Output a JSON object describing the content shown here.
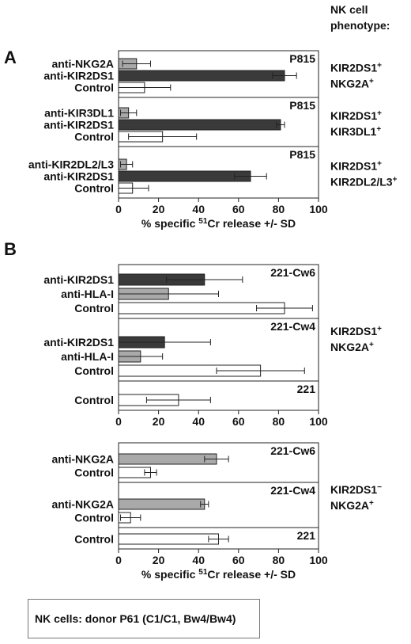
{
  "header": {
    "line1": "NK cell",
    "line2": "phenotype:"
  },
  "footer": {
    "text": "NK cells: donor P61 (C1/C1, Bw4/Bw4)"
  },
  "colors": {
    "dark": "#3a3a3a",
    "gray": "#a9a9a9",
    "open": "#ffffff"
  },
  "chart_data": [
    {
      "type": "bar",
      "orientation": "horizontal",
      "letter": "A",
      "xlim": [
        0,
        100
      ],
      "xticks": [
        "0",
        "20",
        "40",
        "60",
        "80",
        "100"
      ],
      "xlabel": {
        "pre": "% specific ",
        "sup": "51",
        "post": "Cr release +/- SD"
      },
      "panels": [
        {
          "target": "P815",
          "phenotype": [
            {
              "base": "KIR2DS1",
              "sup": "+"
            },
            {
              "base": "NKG2A",
              "sup": "+"
            }
          ],
          "bars": [
            {
              "label": "anti-NKG2A",
              "value": 9,
              "sd": 7,
              "fill": "gray"
            },
            {
              "label": "anti-KIR2DS1",
              "value": 83,
              "sd": 6,
              "fill": "dark"
            },
            {
              "label": "Control",
              "value": 13,
              "sd": 13,
              "fill": "open"
            }
          ]
        },
        {
          "target": "P815",
          "phenotype": [
            {
              "base": "KIR2DS1",
              "sup": "+"
            },
            {
              "base": "KIR3DL1",
              "sup": "+"
            }
          ],
          "bars": [
            {
              "label": "anti-KIR3DL1",
              "value": 5,
              "sd": 4,
              "fill": "gray"
            },
            {
              "label": "anti-KIR2DS1",
              "value": 81,
              "sd": 2,
              "fill": "dark"
            },
            {
              "label": "Control",
              "value": 22,
              "sd": 17,
              "fill": "open"
            }
          ]
        },
        {
          "target": "P815",
          "phenotype": [
            {
              "base": "KIR2DS1",
              "sup": "+"
            },
            {
              "base": "KIR2DL2/L3",
              "sup": "+"
            }
          ],
          "bars": [
            {
              "label": "anti-KIR2DL2/L3",
              "value": 4,
              "sd": 3,
              "fill": "gray"
            },
            {
              "label": "anti-KIR2DS1",
              "value": 66,
              "sd": 8,
              "fill": "dark"
            },
            {
              "label": "Control",
              "value": 7,
              "sd": 8,
              "fill": "open"
            }
          ]
        }
      ]
    },
    {
      "type": "bar",
      "orientation": "horizontal",
      "letter": "B",
      "xlim": [
        0,
        100
      ],
      "xticks": [
        "0",
        "20",
        "40",
        "60",
        "80",
        "100"
      ],
      "phenotype": [
        {
          "base": "KIR2DS1",
          "sup": "+"
        },
        {
          "base": "NKG2A",
          "sup": "+"
        }
      ],
      "panels": [
        {
          "target": "221-Cw6",
          "bars": [
            {
              "label": "anti-KIR2DS1",
              "value": 43,
              "sd": 19,
              "fill": "dark"
            },
            {
              "label": "anti-HLA-I",
              "value": 25,
              "sd": 25,
              "fill": "gray"
            },
            {
              "label": "Control",
              "value": 83,
              "sd": 14,
              "fill": "open"
            }
          ]
        },
        {
          "target": "221-Cw4",
          "bars": [
            {
              "label": "anti-KIR2DS1",
              "value": 23,
              "sd": 23,
              "fill": "dark"
            },
            {
              "label": "anti-HLA-I",
              "value": 11,
              "sd": 11,
              "fill": "gray"
            },
            {
              "label": "Control",
              "value": 71,
              "sd": 22,
              "fill": "open"
            }
          ]
        },
        {
          "target": "221",
          "bars": [
            {
              "label": "Control",
              "value": 30,
              "sd": 16,
              "fill": "open"
            }
          ]
        }
      ]
    },
    {
      "type": "bar",
      "orientation": "horizontal",
      "xlim": [
        0,
        100
      ],
      "xticks": [
        "0",
        "20",
        "40",
        "60",
        "80",
        "100"
      ],
      "xlabel": {
        "pre": "% specific ",
        "sup": "51",
        "post": "Cr release +/- SD"
      },
      "phenotype": [
        {
          "base": "KIR2DS1",
          "sup": "−"
        },
        {
          "base": "NKG2A",
          "sup": "+"
        }
      ],
      "panels": [
        {
          "target": "221-Cw6",
          "bars": [
            {
              "label": "anti-NKG2A",
              "value": 49,
              "sd": 6,
              "fill": "gray"
            },
            {
              "label": "Control",
              "value": 16,
              "sd": 3,
              "fill": "open"
            }
          ]
        },
        {
          "target": "221-Cw4",
          "bars": [
            {
              "label": "anti-NKG2A",
              "value": 43,
              "sd": 2,
              "fill": "gray"
            },
            {
              "label": "Control",
              "value": 6,
              "sd": 5,
              "fill": "open"
            }
          ]
        },
        {
          "target": "221",
          "bars": [
            {
              "label": "Control",
              "value": 50,
              "sd": 5,
              "fill": "open"
            }
          ]
        }
      ]
    }
  ]
}
